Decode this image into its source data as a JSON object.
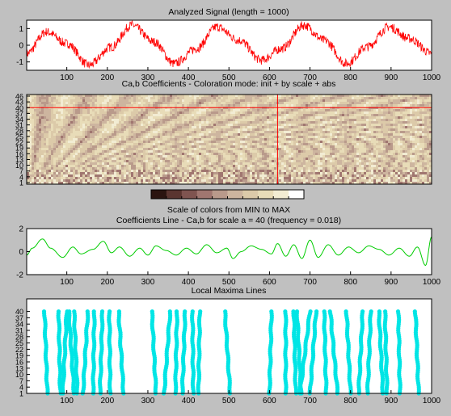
{
  "chart_data": [
    {
      "type": "line",
      "title": "Analyzed Signal (length = 1000)",
      "xlim": [
        1,
        1000
      ],
      "ylim": [
        -1.5,
        1.5
      ],
      "x_ticks": [
        100,
        200,
        300,
        400,
        500,
        600,
        700,
        800,
        900,
        1000
      ],
      "y_ticks": [
        -1,
        0,
        1
      ],
      "series": [
        {
          "color": "#ff0000",
          "description_of_shape": "sinusoid of period ~210 samples, amplitude ~1.1, with dense high-frequency noise",
          "x": [
            1,
            50,
            100,
            155,
            210,
            260,
            315,
            365,
            420,
            470,
            525,
            580,
            630,
            685,
            735,
            790,
            840,
            895,
            945,
            1000
          ],
          "values": [
            -0.5,
            0.8,
            0.1,
            -1.2,
            -0.1,
            1.2,
            0.2,
            -1.1,
            -0.2,
            1.1,
            0.3,
            -0.9,
            -0.2,
            1.2,
            0.3,
            -1.1,
            -0.1,
            1.1,
            0.4,
            -0.5
          ]
        }
      ]
    },
    {
      "type": "heatmap",
      "title": "Ca,b Coefficients - Coloration mode: init + by scale + abs",
      "xlim": [
        1,
        1000
      ],
      "y_ticks": [
        1,
        4,
        7,
        10,
        13,
        16,
        19,
        22,
        25,
        28,
        31,
        34,
        37,
        40,
        43,
        46
      ],
      "colormap": "pink (dark brown to white)",
      "crosshair": {
        "x": 620,
        "scale": 40,
        "color": "#ff0000"
      }
    },
    {
      "type": "colorbar",
      "title": "Scale of colors from MIN to MAX",
      "colors": [
        "#2a1410",
        "#5a3530",
        "#7f5450",
        "#a07670",
        "#b99a8b",
        "#cdb59f",
        "#dccaa9",
        "#e8dcb8",
        "#f2ecd3",
        "#ffffff"
      ]
    },
    {
      "type": "line",
      "title": "Coefficients Line - Ca,b for scale a = 40  (frequency =   0.018)",
      "xlim": [
        1,
        1000
      ],
      "ylim": [
        -2,
        2
      ],
      "x_ticks": [
        100,
        200,
        300,
        400,
        500,
        600,
        700,
        800,
        900,
        1000
      ],
      "y_ticks": [
        -2,
        0,
        2
      ],
      "series": [
        {
          "color": "#00cc00",
          "x": [
            1,
            15,
            40,
            60,
            90,
            115,
            135,
            165,
            190,
            210,
            230,
            255,
            280,
            300,
            320,
            345,
            370,
            395,
            420,
            445,
            470,
            495,
            510,
            530,
            555,
            580,
            605,
            620,
            640,
            660,
            680,
            700,
            720,
            745,
            770,
            795,
            820,
            845,
            870,
            895,
            920,
            945,
            965,
            985,
            1000
          ],
          "values": [
            -0.3,
            0.3,
            1.1,
            0.3,
            -0.5,
            0.4,
            -0.2,
            0.2,
            0.9,
            -0.1,
            0.4,
            -0.4,
            0.3,
            -0.3,
            0.5,
            0.1,
            -0.3,
            0.3,
            -0.2,
            0.6,
            -0.1,
            0.3,
            -0.6,
            0.0,
            0.5,
            0.2,
            -0.2,
            0.7,
            -0.4,
            0.6,
            -0.6,
            1.0,
            -0.5,
            0.6,
            -0.3,
            0.4,
            -0.1,
            0.5,
            0.2,
            -0.3,
            0.3,
            -0.4,
            0.4,
            -1.2,
            1.3
          ]
        }
      ]
    },
    {
      "type": "scatter",
      "title": "Local Maxima Lines",
      "xlim": [
        1,
        1000
      ],
      "ylim": [
        1,
        46
      ],
      "x_ticks": [
        100,
        200,
        300,
        400,
        500,
        600,
        700,
        800,
        900,
        1000
      ],
      "y_ticks": [
        1,
        4,
        7,
        10,
        13,
        16,
        19,
        22,
        25,
        28,
        31,
        34,
        37,
        40
      ],
      "color": "#00e5e5",
      "lines": [
        {
          "x_top": 45,
          "x_bottom": 52
        },
        {
          "x_top": 80,
          "x_bottom": 84
        },
        {
          "x_top": 100,
          "x_bottom": 90
        },
        {
          "x_top": 105,
          "x_bottom": 118
        },
        {
          "x_top": 118,
          "x_bottom": 126
        },
        {
          "x_top": 152,
          "x_bottom": 140
        },
        {
          "x_top": 168,
          "x_bottom": 165
        },
        {
          "x_top": 188,
          "x_bottom": 182
        },
        {
          "x_top": 205,
          "x_bottom": 207
        },
        {
          "x_top": 228,
          "x_bottom": 240
        },
        {
          "x_top": 310,
          "x_bottom": 320
        },
        {
          "x_top": 355,
          "x_bottom": 340
        },
        {
          "x_top": 372,
          "x_bottom": 368
        },
        {
          "x_top": 392,
          "x_bottom": 385
        },
        {
          "x_top": 410,
          "x_bottom": 412
        },
        {
          "x_top": 428,
          "x_bottom": 425
        },
        {
          "x_top": 490,
          "x_bottom": 503
        },
        {
          "x_top": 605,
          "x_bottom": 600
        },
        {
          "x_top": 640,
          "x_bottom": 640
        },
        {
          "x_top": 660,
          "x_bottom": 665
        },
        {
          "x_top": 668,
          "x_bottom": 678
        },
        {
          "x_top": 700,
          "x_bottom": 675
        },
        {
          "x_top": 715,
          "x_bottom": 700
        },
        {
          "x_top": 735,
          "x_bottom": 740
        },
        {
          "x_top": 750,
          "x_bottom": 768
        },
        {
          "x_top": 790,
          "x_bottom": 800
        },
        {
          "x_top": 830,
          "x_bottom": 820
        },
        {
          "x_top": 850,
          "x_bottom": 842
        },
        {
          "x_top": 870,
          "x_bottom": 880
        },
        {
          "x_top": 885,
          "x_bottom": 890
        },
        {
          "x_top": 918,
          "x_bottom": 922
        },
        {
          "x_top": 960,
          "x_bottom": 968
        }
      ]
    }
  ]
}
